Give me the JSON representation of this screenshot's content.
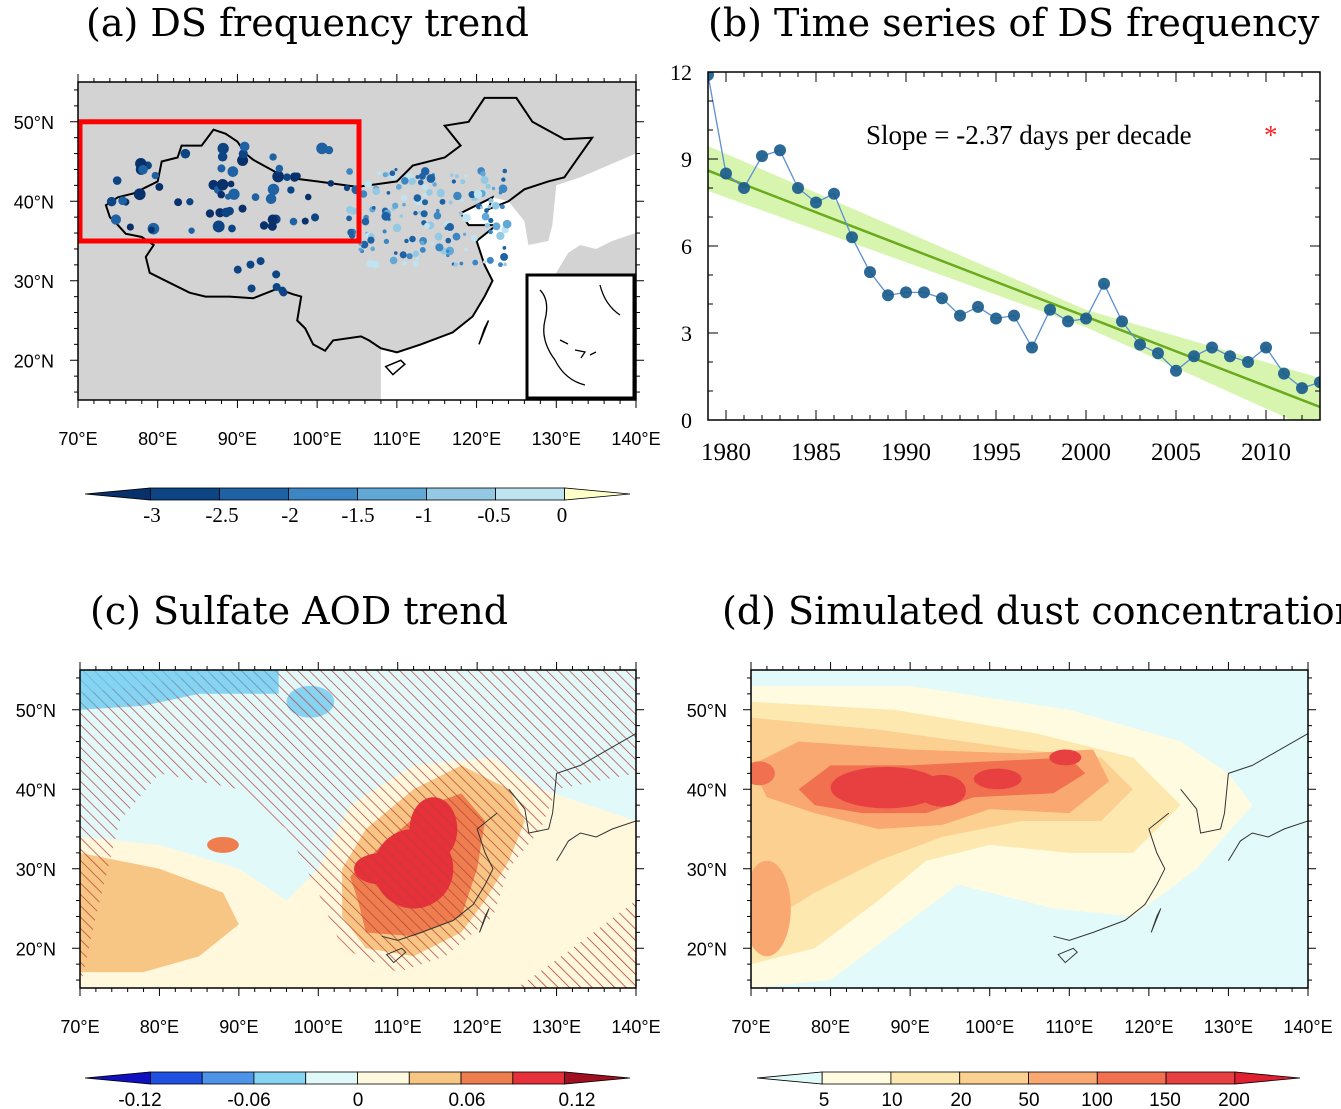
{
  "chart_data": [
    {
      "panel": "a",
      "type": "scatter",
      "title": "(a) DS frequency trend",
      "x_ticks": [
        "70°E",
        "80°E",
        "90°E",
        "100°E",
        "110°E",
        "120°E",
        "130°E",
        "140°E"
      ],
      "y_ticks": [
        "50°N",
        "40°N",
        "30°N",
        "20°N"
      ],
      "xlim": [
        70,
        140
      ],
      "ylim": [
        15,
        55
      ],
      "highlight_box": {
        "lon": [
          70,
          105
        ],
        "lat": [
          35,
          50
        ],
        "color": "#ff0000"
      },
      "colorbar": {
        "labels": [
          "-3",
          "-2.5",
          "-2",
          "-1.5",
          "-1",
          "-0.5",
          "0"
        ],
        "colors": [
          "#08306b",
          "#0d4584",
          "#1f62a4",
          "#3c86c4",
          "#62a8d6",
          "#93c9e3",
          "#bfe4f0",
          "#ffffc8"
        ]
      }
    },
    {
      "panel": "b",
      "type": "line",
      "title": "(b) Time series of DS frequency",
      "annotation": "Slope = -2.37 days per decade",
      "annotation_mark": "*",
      "x": [
        1979,
        1980,
        1981,
        1982,
        1983,
        1984,
        1985,
        1986,
        1987,
        1988,
        1989,
        1990,
        1991,
        1992,
        1993,
        1994,
        1995,
        1996,
        1997,
        1998,
        1999,
        2000,
        2001,
        2002,
        2003,
        2004,
        2005,
        2006,
        2007,
        2008,
        2009,
        2010,
        2011,
        2012,
        2013
      ],
      "series": [
        {
          "name": "DS frequency",
          "values": [
            11.9,
            8.5,
            8.0,
            9.1,
            9.3,
            8.0,
            7.5,
            7.8,
            6.3,
            5.1,
            4.3,
            4.4,
            4.4,
            4.2,
            3.6,
            3.9,
            3.5,
            3.6,
            2.5,
            3.8,
            3.4,
            3.5,
            4.7,
            3.4,
            2.6,
            2.3,
            1.7,
            2.2,
            2.5,
            2.2,
            2.0,
            2.5,
            1.6,
            1.1,
            1.3
          ],
          "color": "#1a5c8c"
        },
        {
          "name": "Linear trend",
          "start": [
            1979,
            8.6
          ],
          "end": [
            2013,
            0.45
          ],
          "color": "#6aaa1e",
          "band_color": "#d8f5b0"
        }
      ],
      "x_ticks": [
        "1980",
        "1985",
        "1990",
        "1995",
        "2000",
        "2005",
        "2010"
      ],
      "y_ticks": [
        "0",
        "3",
        "6",
        "9",
        "12"
      ],
      "xlim": [
        1979,
        2013
      ],
      "ylim": [
        0,
        12
      ]
    },
    {
      "panel": "c",
      "type": "heatmap",
      "title": "(c) Sulfate AOD trend",
      "x_ticks": [
        "70°E",
        "80°E",
        "90°E",
        "100°E",
        "110°E",
        "120°E",
        "130°E",
        "140°E"
      ],
      "y_ticks": [
        "50°N",
        "40°N",
        "30°N",
        "20°N"
      ],
      "xlim": [
        70,
        140
      ],
      "ylim": [
        15,
        55
      ],
      "colorbar": {
        "labels": [
          "-0.12",
          "-0.06",
          "0",
          "0.06",
          "0.12"
        ],
        "colors": [
          "#1010c0",
          "#2050e0",
          "#4d94e8",
          "#86d4f2",
          "#e0f8f8",
          "#fff9e0",
          "#f7c684",
          "#ef7e4e",
          "#e6303a",
          "#a01020"
        ]
      }
    },
    {
      "panel": "d",
      "type": "heatmap",
      "title": "(d) Simulated dust concentration",
      "x_ticks": [
        "70°E",
        "80°E",
        "90°E",
        "100°E",
        "110°E",
        "120°E",
        "130°E",
        "140°E"
      ],
      "y_ticks": [
        "50°N",
        "40°N",
        "30°N",
        "20°N"
      ],
      "xlim": [
        70,
        140
      ],
      "ylim": [
        15,
        55
      ],
      "colorbar": {
        "labels": [
          "5",
          "10",
          "20",
          "50",
          "100",
          "150",
          "200"
        ],
        "colors": [
          "#e0fafa",
          "#fffbe0",
          "#fde9b0",
          "#fbd090",
          "#f8a870",
          "#f07050",
          "#e84040",
          "#e02030"
        ]
      }
    }
  ]
}
